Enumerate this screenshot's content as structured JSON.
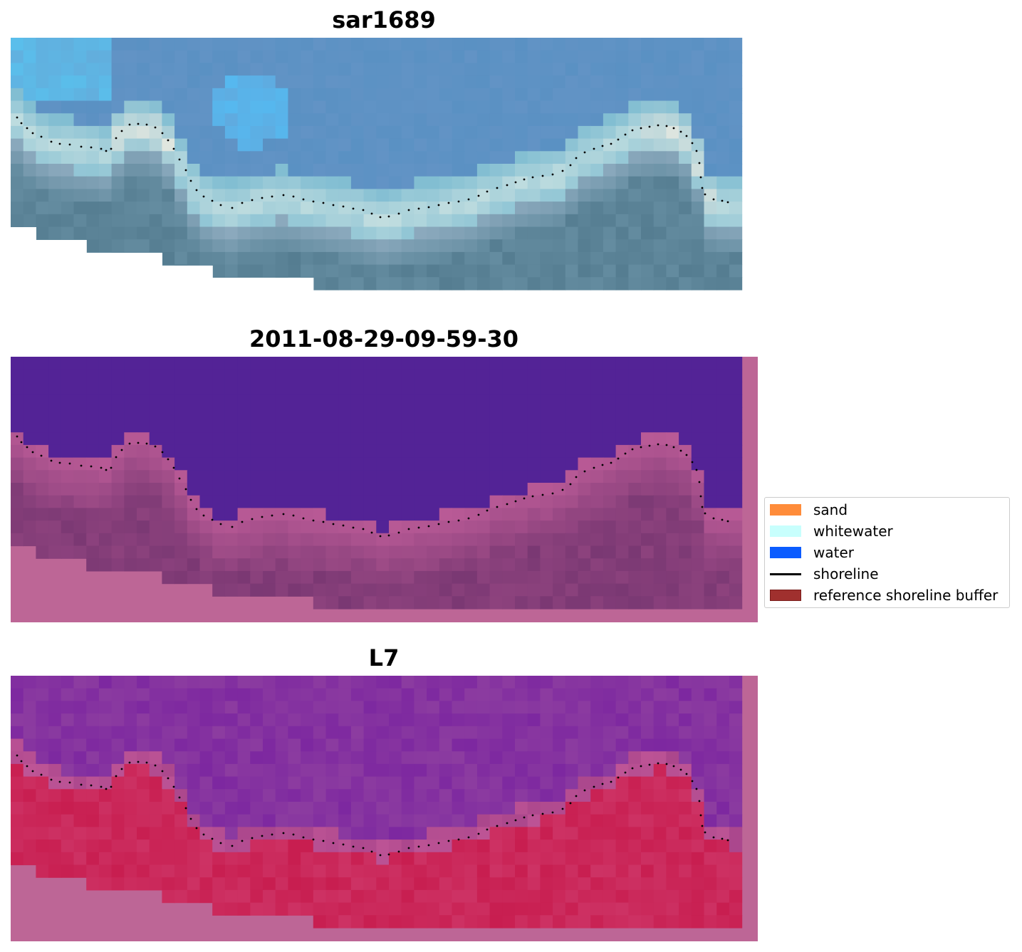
{
  "panels": [
    {
      "title": "sar1689",
      "kind": "rgb"
    },
    {
      "title": "2011-08-29-09-59-30",
      "kind": "classification"
    },
    {
      "title": "L7",
      "kind": "index"
    }
  ],
  "legend": {
    "items": [
      {
        "label": "sand",
        "color": "#ff8c3a",
        "type": "patch"
      },
      {
        "label": "whitewater",
        "color": "#c8fffd",
        "type": "patch"
      },
      {
        "label": "water",
        "color": "#0b5cff",
        "type": "patch"
      },
      {
        "label": "shoreline",
        "color": "#000000",
        "type": "line"
      },
      {
        "label": "reference shoreline buffer",
        "color": "#a0302e",
        "type": "patch"
      }
    ]
  },
  "colors": {
    "buffer_overlay": "#bd6696",
    "class_water": "#532396",
    "class_land": "#7a3873",
    "index_water": "#7c2aa0",
    "index_land": "#c42456"
  }
}
